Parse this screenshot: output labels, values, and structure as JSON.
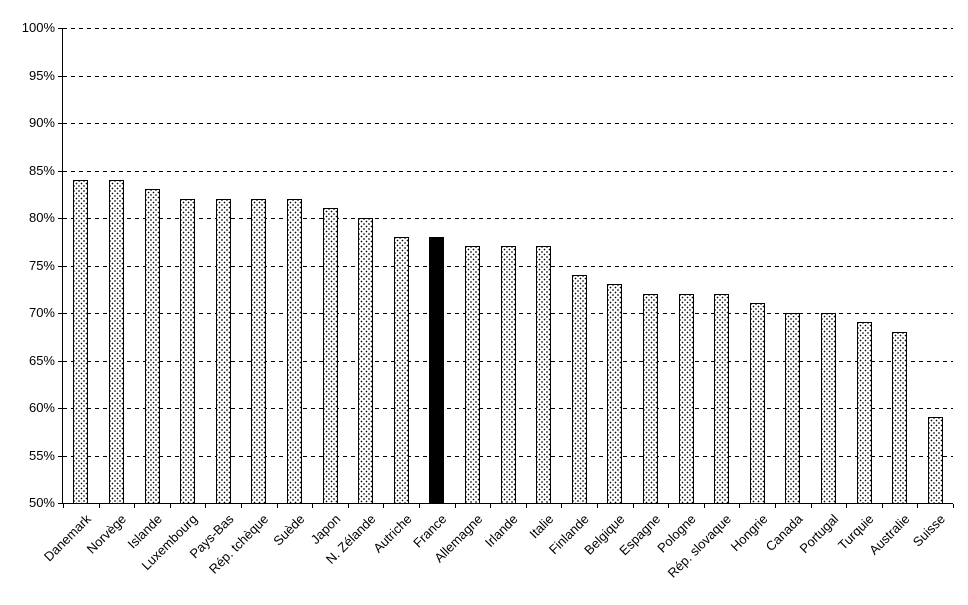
{
  "chart_data": {
    "type": "bar",
    "title": "",
    "xlabel": "",
    "ylabel": "",
    "categories": [
      "Danemark",
      "Norvège",
      "Islande",
      "Luxembourg",
      "Pays-Bas",
      "Rép. tchèque",
      "Suède",
      "Japon",
      "N. Zélande",
      "Autriche",
      "France",
      "Allemagne",
      "Irlande",
      "Italie",
      "Finlande",
      "Belgique",
      "Espagne",
      "Pologne",
      "Rép. slovaque",
      "Hongrie",
      "Canada",
      "Portugal",
      "Turquie",
      "Australie",
      "Suisse"
    ],
    "values": [
      84,
      84,
      83,
      82,
      82,
      82,
      82,
      81,
      80,
      78,
      78,
      77,
      77,
      77,
      74,
      73,
      72,
      72,
      72,
      71,
      70,
      70,
      69,
      68,
      59
    ],
    "highlight_category": "France",
    "highlight_color": "#000000",
    "bar_pattern": "dotted",
    "bar_border_color": "#000000",
    "background_color": "#ffffff",
    "ylim": [
      50,
      100
    ],
    "ytick_step": 5,
    "ytick_labels": [
      "50%",
      "55%",
      "60%",
      "65%",
      "70%",
      "75%",
      "80%",
      "85%",
      "90%",
      "95%",
      "100%"
    ],
    "grid": "dashed-horizontal",
    "legend": "none"
  }
}
